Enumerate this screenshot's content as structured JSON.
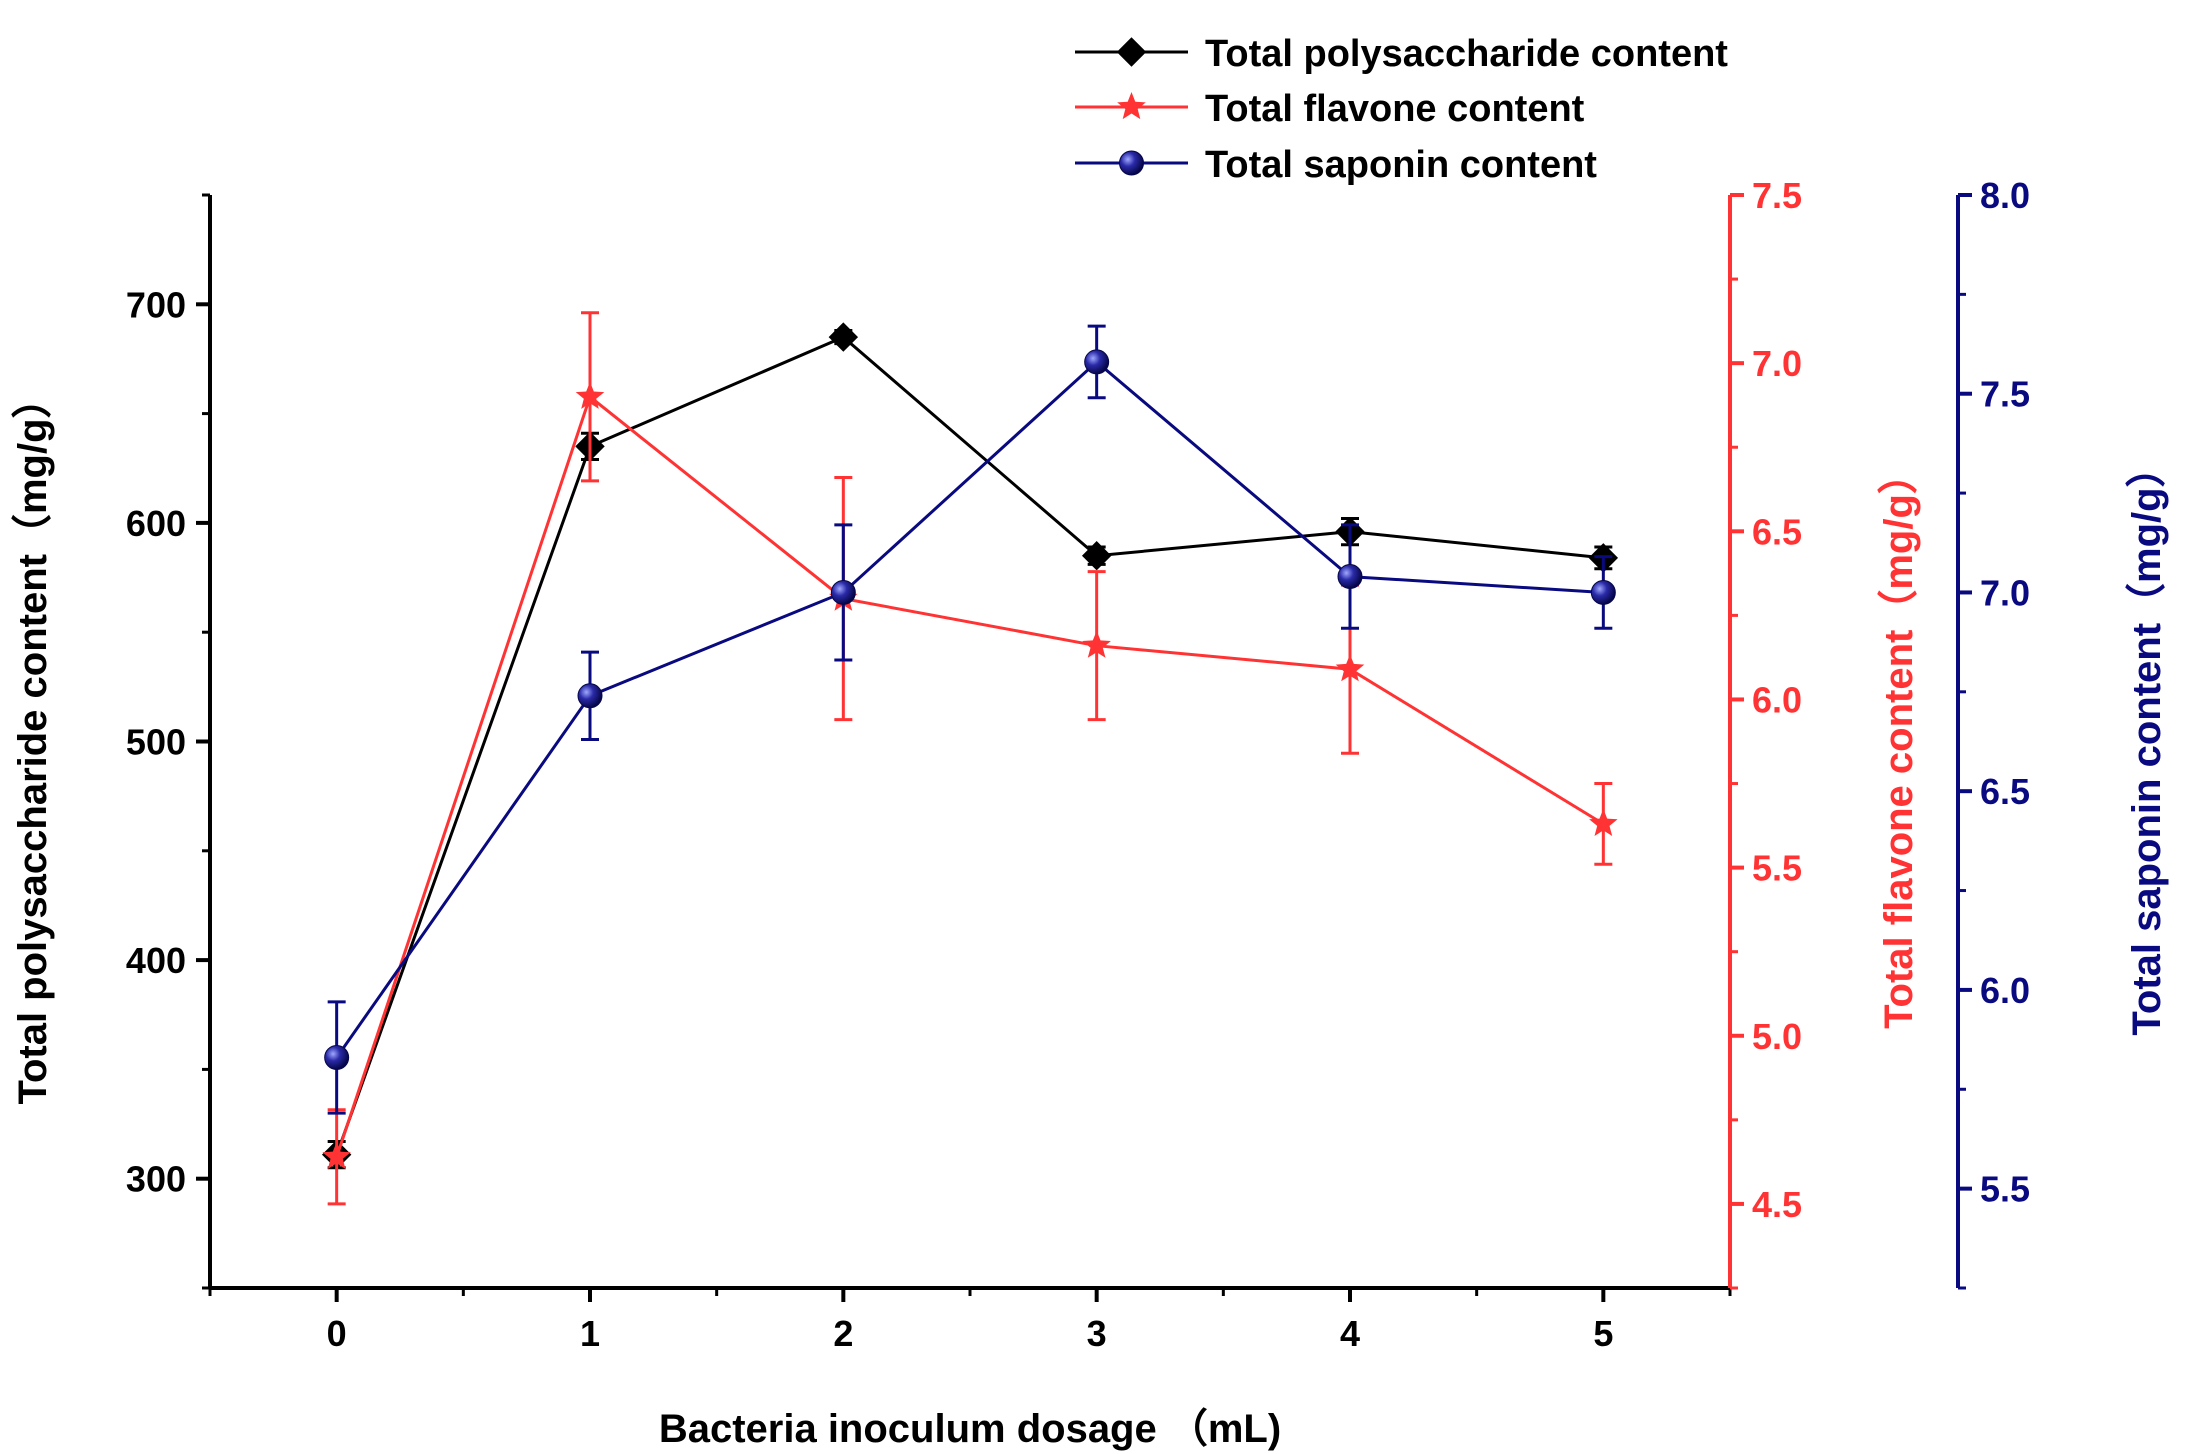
{
  "chart_data": {
    "type": "line",
    "title": "",
    "xlabel": "Bacteria inoculum dosage （mL)",
    "x": [
      0,
      1,
      2,
      3,
      4,
      5
    ],
    "xlim": [
      -0.5,
      5.5
    ],
    "x_ticks": [
      "0",
      "1",
      "2",
      "3",
      "4",
      "5"
    ],
    "axes": [
      {
        "id": "left",
        "label": "Total polysaccharide content（mg/g）",
        "ylim": [
          250,
          750
        ],
        "ticks": [
          300,
          400,
          500,
          600,
          700
        ],
        "tick_labels": [
          "300",
          "400",
          "500",
          "600",
          "700"
        ],
        "color": "#000000"
      },
      {
        "id": "right1",
        "label": "Total flavone content（mg/g）",
        "ylim": [
          4.25,
          7.5
        ],
        "ticks": [
          4.5,
          5.0,
          5.5,
          6.0,
          6.5,
          7.0,
          7.5
        ],
        "tick_labels": [
          "4.5",
          "5.0",
          "5.5",
          "6.0",
          "6.5",
          "7.0",
          "7.5"
        ],
        "color": "#ff3333"
      },
      {
        "id": "right2",
        "label": "Total saponin content（mg/g）",
        "ylim": [
          5.25,
          8.0
        ],
        "ticks": [
          5.5,
          6.0,
          6.5,
          7.0,
          7.5,
          8.0
        ],
        "tick_labels": [
          "5.5",
          "6.0",
          "6.5",
          "7.0",
          "7.5",
          "8.0"
        ],
        "color": "#0a0a80"
      }
    ],
    "series": [
      {
        "name": "Total polysaccharide content",
        "axis": "left",
        "marker": "diamond",
        "color": "#000000",
        "values": [
          311,
          635,
          685,
          585,
          596,
          584
        ],
        "errors": [
          6,
          6,
          3,
          4,
          6,
          5
        ]
      },
      {
        "name": "Total flavone content",
        "axis": "right1",
        "marker": "star",
        "color": "#ff3333",
        "values": [
          4.64,
          6.9,
          6.3,
          6.16,
          6.09,
          5.63
        ],
        "errors": [
          0.14,
          0.25,
          0.36,
          0.22,
          0.25,
          0.12
        ]
      },
      {
        "name": "Total saponin content",
        "axis": "right2",
        "marker": "sphere",
        "color": "#0a0a80",
        "values": [
          5.83,
          6.74,
          7.0,
          7.58,
          7.04,
          7.0
        ],
        "errors": [
          0.14,
          0.11,
          0.17,
          0.09,
          0.13,
          0.09
        ]
      }
    ],
    "legend": {
      "position": "top-right",
      "entries": [
        "Total polysaccharide content",
        "Total flavone content",
        "Total saponin content"
      ]
    },
    "grid": false
  }
}
